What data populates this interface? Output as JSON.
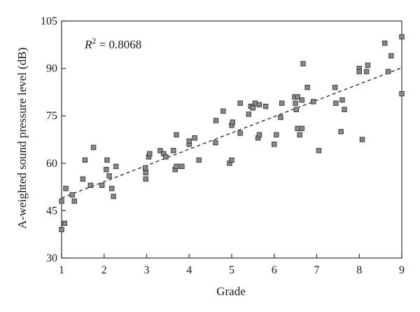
{
  "chart_data": {
    "type": "scatter",
    "xlabel": "Grade",
    "ylabel": "A-weighted sound pressure level (dB)",
    "xlim": [
      1,
      9
    ],
    "ylim": [
      30,
      105
    ],
    "xticks": [
      1,
      2,
      3,
      4,
      5,
      6,
      7,
      8,
      9
    ],
    "yticks": [
      30,
      45,
      60,
      75,
      90,
      105
    ],
    "annotation": {
      "r2_prefix": "R",
      "r2_sup": "2",
      "r2_value": " = 0.8068"
    },
    "trendline": {
      "x": [
        1,
        9
      ],
      "y": [
        49.0,
        90.2
      ],
      "style": "dashed"
    },
    "colors": {
      "marker_fill": "#8a8a8a",
      "marker_stroke": "#333333",
      "line": "#222222"
    },
    "points": [
      {
        "x": 1.0,
        "y": 39
      },
      {
        "x": 1.0,
        "y": 48
      },
      {
        "x": 1.07,
        "y": 41
      },
      {
        "x": 1.1,
        "y": 52
      },
      {
        "x": 1.25,
        "y": 50
      },
      {
        "x": 1.3,
        "y": 48
      },
      {
        "x": 1.5,
        "y": 55
      },
      {
        "x": 1.55,
        "y": 61
      },
      {
        "x": 1.68,
        "y": 53
      },
      {
        "x": 1.75,
        "y": 65
      },
      {
        "x": 1.95,
        "y": 53
      },
      {
        "x": 2.05,
        "y": 58
      },
      {
        "x": 2.07,
        "y": 61
      },
      {
        "x": 2.12,
        "y": 56
      },
      {
        "x": 2.18,
        "y": 52
      },
      {
        "x": 2.22,
        "y": 49.5
      },
      {
        "x": 2.28,
        "y": 59
      },
      {
        "x": 2.97,
        "y": 58.5
      },
      {
        "x": 2.98,
        "y": 57
      },
      {
        "x": 2.98,
        "y": 55
      },
      {
        "x": 3.05,
        "y": 62
      },
      {
        "x": 3.07,
        "y": 63
      },
      {
        "x": 3.32,
        "y": 64
      },
      {
        "x": 3.4,
        "y": 63
      },
      {
        "x": 3.45,
        "y": 62
      },
      {
        "x": 3.63,
        "y": 64
      },
      {
        "x": 3.67,
        "y": 58
      },
      {
        "x": 3.7,
        "y": 59
      },
      {
        "x": 3.7,
        "y": 69
      },
      {
        "x": 3.83,
        "y": 59
      },
      {
        "x": 4.0,
        "y": 66
      },
      {
        "x": 4.0,
        "y": 67
      },
      {
        "x": 4.13,
        "y": 68
      },
      {
        "x": 4.23,
        "y": 61
      },
      {
        "x": 4.62,
        "y": 66.5
      },
      {
        "x": 4.63,
        "y": 73.5
      },
      {
        "x": 4.8,
        "y": 76.5
      },
      {
        "x": 4.95,
        "y": 60
      },
      {
        "x": 5.0,
        "y": 61
      },
      {
        "x": 5.0,
        "y": 72
      },
      {
        "x": 5.02,
        "y": 73
      },
      {
        "x": 5.2,
        "y": 79
      },
      {
        "x": 5.2,
        "y": 69.5
      },
      {
        "x": 5.4,
        "y": 75.5
      },
      {
        "x": 5.45,
        "y": 78
      },
      {
        "x": 5.5,
        "y": 77.5
      },
      {
        "x": 5.55,
        "y": 79
      },
      {
        "x": 5.62,
        "y": 68
      },
      {
        "x": 5.65,
        "y": 69
      },
      {
        "x": 5.65,
        "y": 78.5
      },
      {
        "x": 5.8,
        "y": 78
      },
      {
        "x": 6.0,
        "y": 66
      },
      {
        "x": 6.05,
        "y": 69
      },
      {
        "x": 6.15,
        "y": 74.5
      },
      {
        "x": 6.18,
        "y": 79
      },
      {
        "x": 6.48,
        "y": 81
      },
      {
        "x": 6.5,
        "y": 79
      },
      {
        "x": 6.52,
        "y": 77
      },
      {
        "x": 6.55,
        "y": 71
      },
      {
        "x": 6.55,
        "y": 81
      },
      {
        "x": 6.6,
        "y": 69
      },
      {
        "x": 6.65,
        "y": 71
      },
      {
        "x": 6.65,
        "y": 80
      },
      {
        "x": 6.68,
        "y": 91.5
      },
      {
        "x": 6.78,
        "y": 84
      },
      {
        "x": 6.92,
        "y": 79.5
      },
      {
        "x": 7.05,
        "y": 64
      },
      {
        "x": 7.43,
        "y": 84
      },
      {
        "x": 7.45,
        "y": 79
      },
      {
        "x": 7.57,
        "y": 70
      },
      {
        "x": 7.6,
        "y": 80
      },
      {
        "x": 7.65,
        "y": 77
      },
      {
        "x": 8.0,
        "y": 90
      },
      {
        "x": 8.0,
        "y": 89
      },
      {
        "x": 8.07,
        "y": 67.5
      },
      {
        "x": 8.17,
        "y": 89
      },
      {
        "x": 8.2,
        "y": 91
      },
      {
        "x": 8.6,
        "y": 98
      },
      {
        "x": 8.68,
        "y": 89
      },
      {
        "x": 8.75,
        "y": 94
      },
      {
        "x": 9.0,
        "y": 100
      },
      {
        "x": 9.0,
        "y": 82
      }
    ]
  }
}
